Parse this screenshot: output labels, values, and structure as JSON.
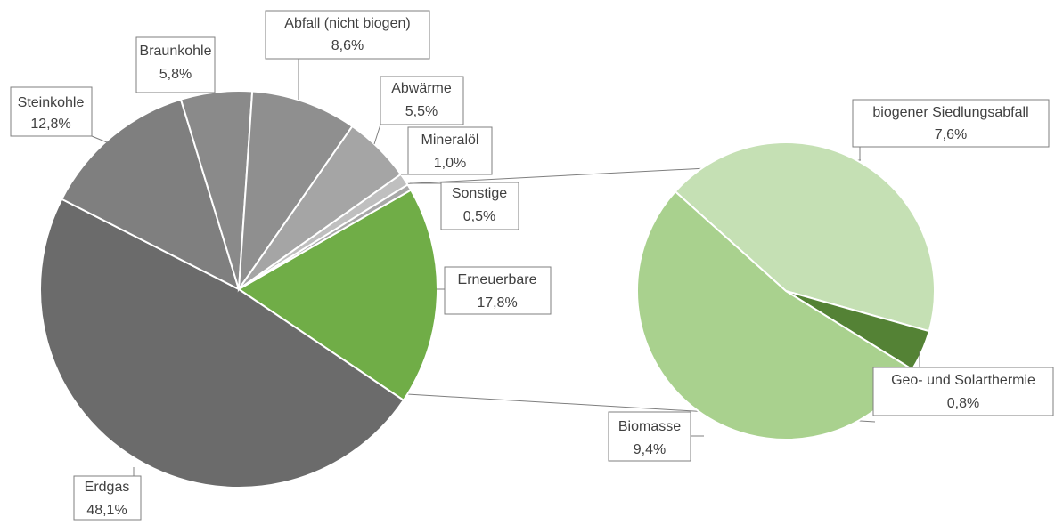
{
  "chart_data": [
    {
      "type": "pie",
      "categories": [
        "Erneuerbare",
        "Erdgas",
        "Steinkohle",
        "Braunkohle",
        "Abfall (nicht biogen)",
        "Abwärme",
        "Mineralöl",
        "Sonstige"
      ],
      "values": [
        17.8,
        48.1,
        12.8,
        5.8,
        8.6,
        5.5,
        1.0,
        0.5
      ],
      "value_labels": [
        "17,8%",
        "48,1%",
        "12,8%",
        "5,8%",
        "8,6%",
        "5,5%",
        "1,0%",
        "0,5%"
      ],
      "colors": [
        "#70ad47",
        "#6b6b6b",
        "#7f7f7f",
        "#8a8a8a",
        "#8f8f8f",
        "#a5a5a5",
        "#bfbfbf",
        "#a8a8a8"
      ]
    },
    {
      "type": "pie",
      "categories": [
        "biogener Siedlungsabfall",
        "Geo- und Solarthermie",
        "Biomasse"
      ],
      "values": [
        7.6,
        0.8,
        9.4
      ],
      "value_labels": [
        "7,6%",
        "0,8%",
        "9,4%"
      ],
      "colors": [
        "#c5e0b4",
        "#548235",
        "#a9d18e"
      ]
    }
  ]
}
